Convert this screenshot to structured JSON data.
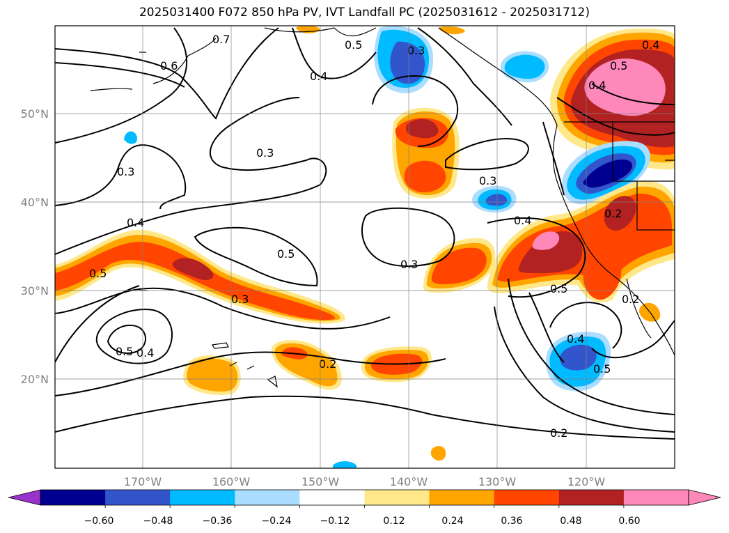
{
  "title": "2025031400 F072 850 hPa PV, IVT Landfall PC (2025031612 - 2025031712)",
  "map": {
    "lon_ticks": [
      "170°W",
      "160°W",
      "150°W",
      "140°W",
      "130°W",
      "120°W"
    ],
    "lat_ticks": [
      "50°N",
      "40°N",
      "30°N",
      "20°N"
    ],
    "grid": true
  },
  "contour_labels": [
    "0.7",
    "0.6",
    "0.5",
    "0.3",
    "0.4",
    "0.3",
    "0.3",
    "0.4",
    "0.5",
    "0.3",
    "0.3",
    "0.4",
    "0.5",
    "0.5",
    "0.4",
    "0.3",
    "0.2",
    "0.5",
    "0.4",
    "0.2",
    "0.5",
    "0.4",
    "0.2",
    "0.5",
    "0.4",
    "0.2"
  ],
  "colorbar": {
    "ticks": [
      "−0.60",
      "−0.48",
      "−0.36",
      "−0.24",
      "−0.12",
      "0.12",
      "0.24",
      "0.36",
      "0.48",
      "0.60"
    ],
    "colors": [
      "#9933cc",
      "#000090",
      "#3355cc",
      "#00bbff",
      "#aaddff",
      "#ffffff",
      "#ffe88a",
      "#ffa500",
      "#ff4500",
      "#b22222",
      "#ff88bb",
      "#ff88bb"
    ],
    "extend": "both"
  }
}
